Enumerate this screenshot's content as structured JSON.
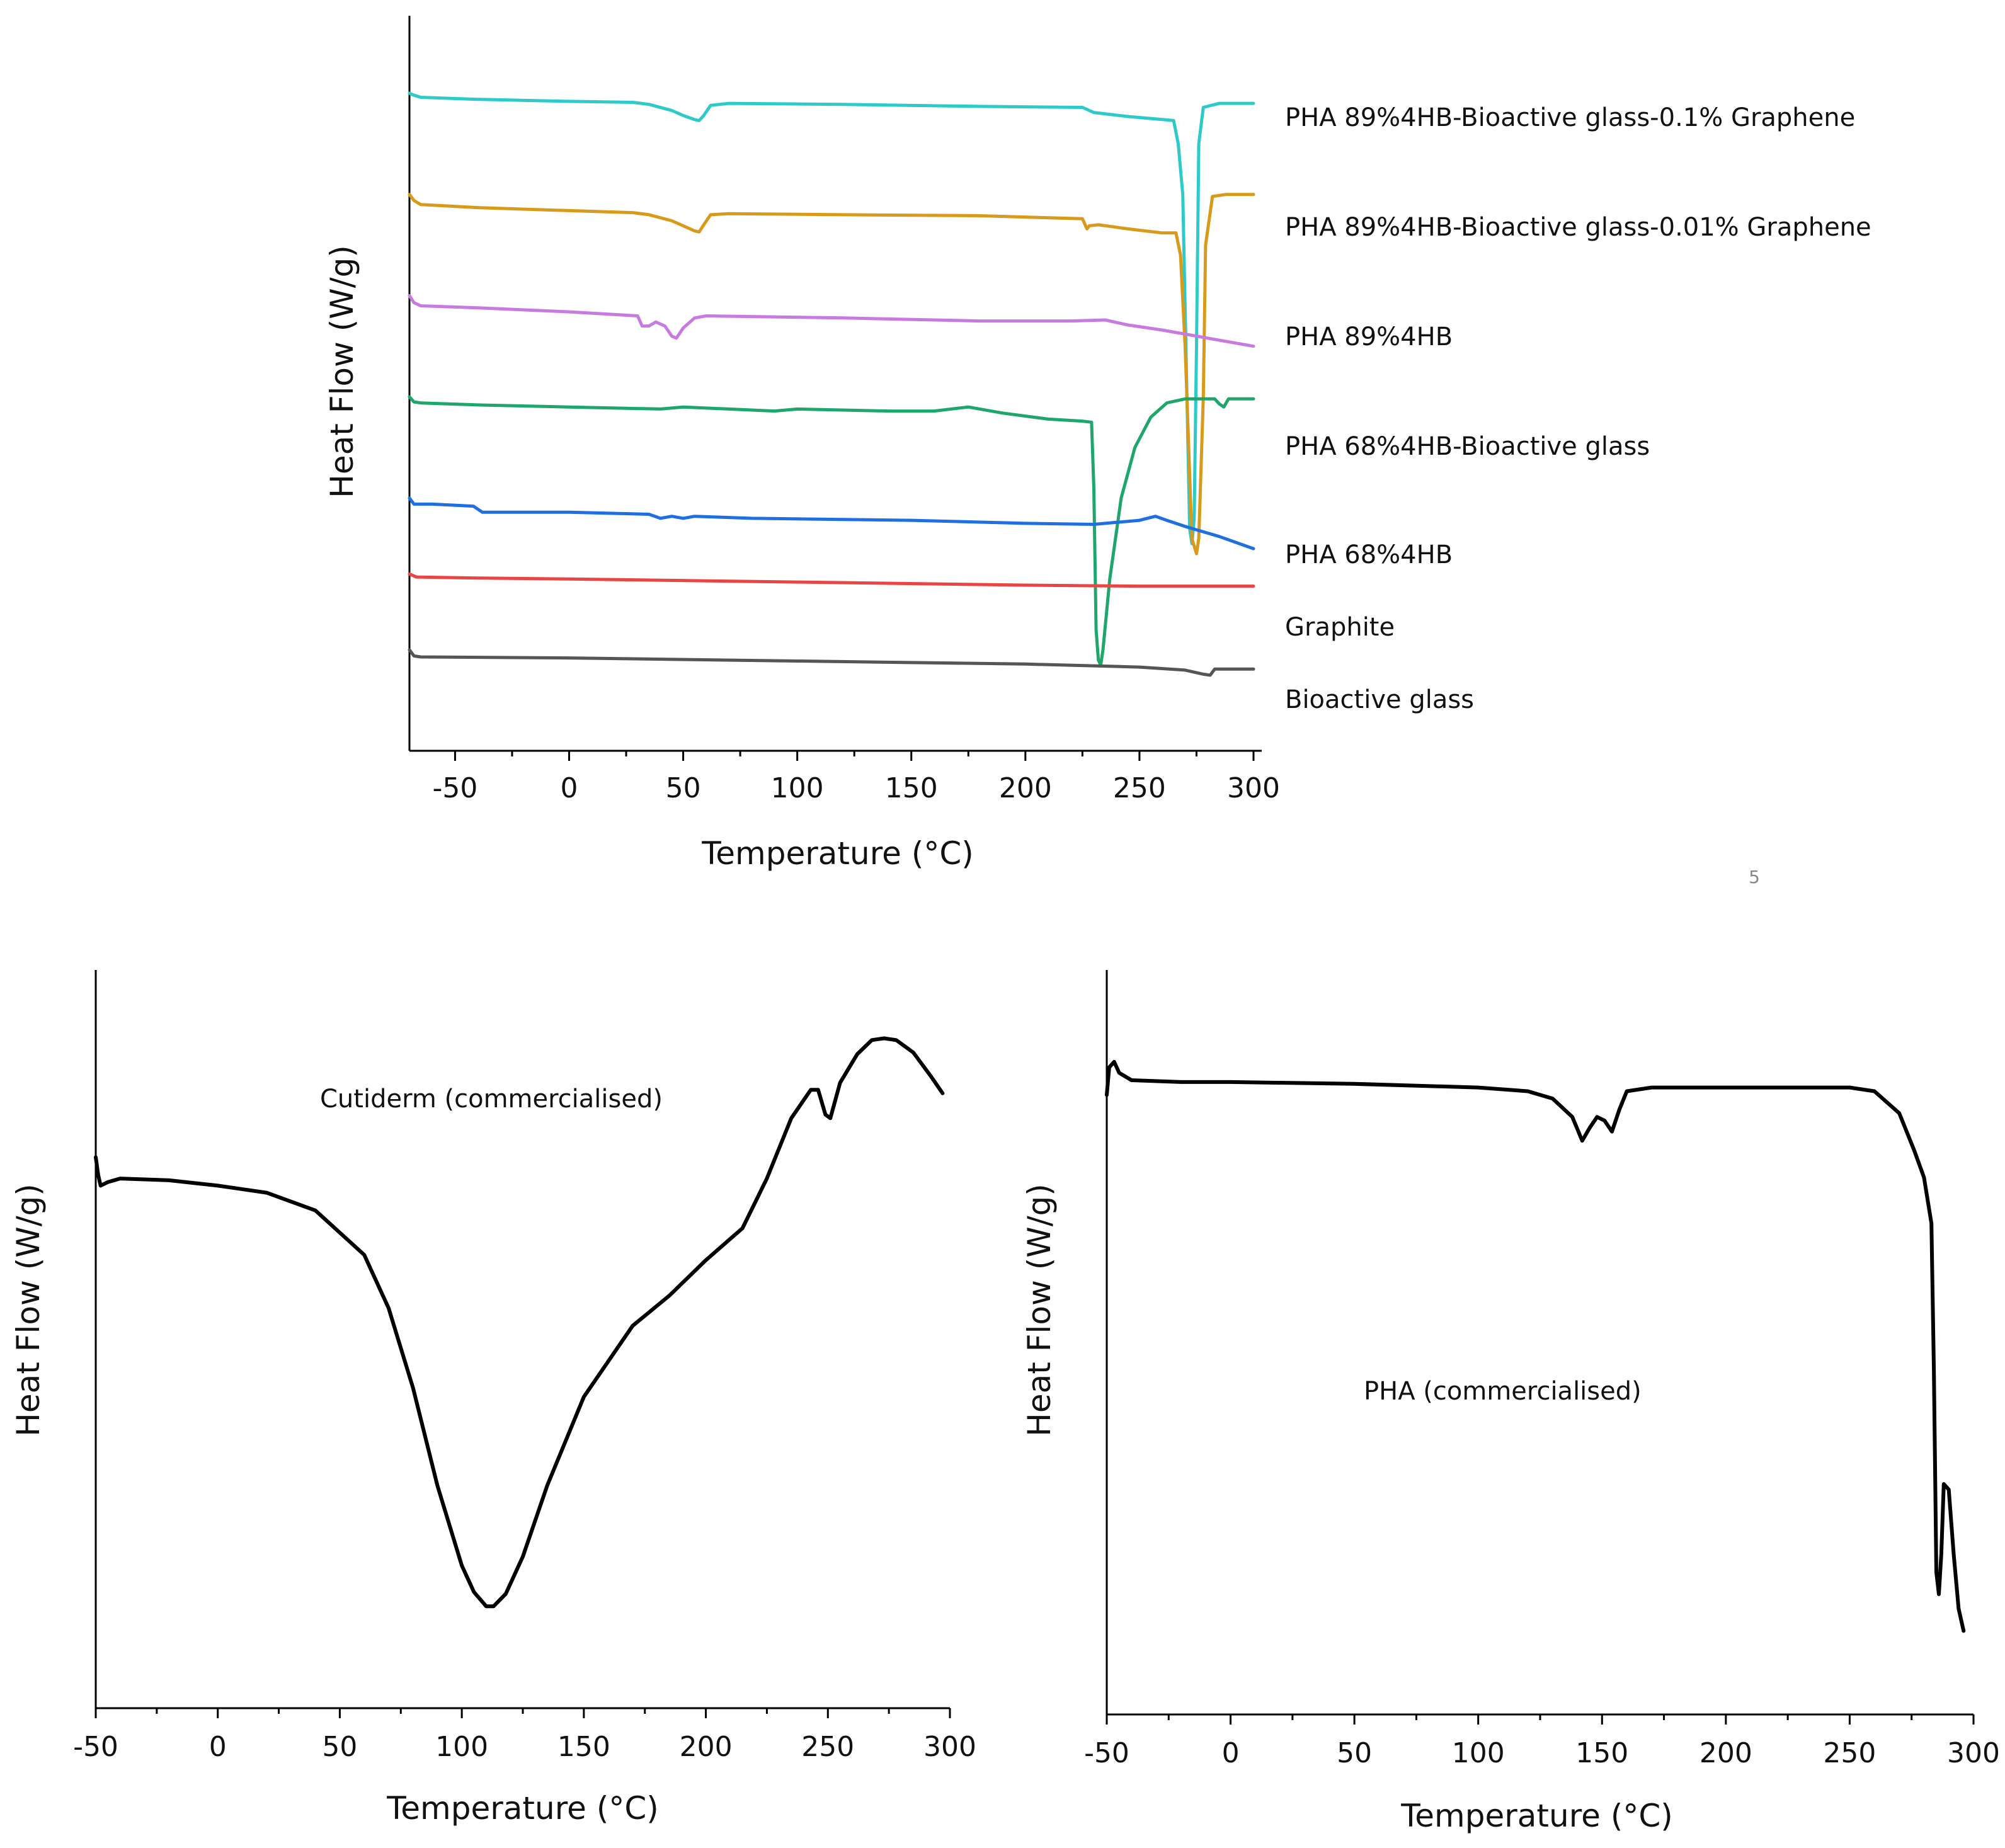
{
  "page_number": "5",
  "chart_data": [
    {
      "id": "top",
      "type": "line",
      "title": "",
      "xlabel": "Temperature (°C)",
      "ylabel": "Heat Flow (W/g)",
      "xlim": [
        -70,
        300
      ],
      "x_ticks": [
        -50,
        0,
        50,
        100,
        150,
        200,
        250,
        300
      ],
      "y_ticks_shown": false,
      "grid": false,
      "legend": "right, each label beside its curve",
      "series": [
        {
          "name": "PHA 89%4HB-Bioactive glass-0.1% Graphene",
          "color": "#2ec9c9",
          "points": [
            [
              -70,
              1.0
            ],
            [
              -68,
              0.98
            ],
            [
              -65,
              0.96
            ],
            [
              -40,
              0.94
            ],
            [
              0,
              0.92
            ],
            [
              28,
              0.91
            ],
            [
              35,
              0.89
            ],
            [
              45,
              0.83
            ],
            [
              50,
              0.78
            ],
            [
              55,
              0.74
            ],
            [
              57,
              0.73
            ],
            [
              59,
              0.78
            ],
            [
              62,
              0.88
            ],
            [
              70,
              0.9
            ],
            [
              120,
              0.89
            ],
            [
              180,
              0.87
            ],
            [
              225,
              0.86
            ],
            [
              230,
              0.81
            ],
            [
              245,
              0.77
            ],
            [
              260,
              0.74
            ],
            [
              265,
              0.73
            ],
            [
              267,
              0.5
            ],
            [
              269,
              0.0
            ],
            [
              272,
              -3.3
            ],
            [
              273,
              -3.45
            ],
            [
              274,
              -3.2
            ],
            [
              275,
              -1.5
            ],
            [
              276,
              0.5
            ],
            [
              278,
              0.86
            ],
            [
              285,
              0.9
            ],
            [
              300,
              0.9
            ]
          ]
        },
        {
          "name": "PHA 89%4HB-Bioactive glass-0.01% Graphene",
          "color": "#d89a1a",
          "points": [
            [
              -70,
              0.0
            ],
            [
              -68,
              -0.06
            ],
            [
              -65,
              -0.1
            ],
            [
              -40,
              -0.13
            ],
            [
              0,
              -0.16
            ],
            [
              28,
              -0.18
            ],
            [
              35,
              -0.2
            ],
            [
              45,
              -0.26
            ],
            [
              50,
              -0.31
            ],
            [
              55,
              -0.36
            ],
            [
              57,
              -0.37
            ],
            [
              59,
              -0.3
            ],
            [
              62,
              -0.2
            ],
            [
              70,
              -0.19
            ],
            [
              120,
              -0.2
            ],
            [
              180,
              -0.21
            ],
            [
              225,
              -0.24
            ],
            [
              227,
              -0.34
            ],
            [
              228,
              -0.31
            ],
            [
              232,
              -0.3
            ],
            [
              245,
              -0.34
            ],
            [
              260,
              -0.38
            ],
            [
              266,
              -0.38
            ],
            [
              268,
              -0.6
            ],
            [
              270,
              -1.5
            ],
            [
              273,
              -3.4
            ],
            [
              275,
              -3.55
            ],
            [
              276,
              -3.4
            ],
            [
              278,
              -2.0
            ],
            [
              279,
              -0.5
            ],
            [
              282,
              -0.02
            ],
            [
              288,
              0.0
            ],
            [
              300,
              0.0
            ]
          ]
        },
        {
          "name": "PHA 89%4HB",
          "color": "#c77ae0",
          "points": [
            [
              -70,
              -1.0
            ],
            [
              -68,
              -1.07
            ],
            [
              -65,
              -1.1
            ],
            [
              -40,
              -1.12
            ],
            [
              0,
              -1.16
            ],
            [
              30,
              -1.2
            ],
            [
              32,
              -1.3
            ],
            [
              35,
              -1.3
            ],
            [
              38,
              -1.26
            ],
            [
              42,
              -1.3
            ],
            [
              45,
              -1.4
            ],
            [
              47,
              -1.42
            ],
            [
              50,
              -1.32
            ],
            [
              55,
              -1.22
            ],
            [
              60,
              -1.2
            ],
            [
              120,
              -1.22
            ],
            [
              180,
              -1.25
            ],
            [
              220,
              -1.25
            ],
            [
              235,
              -1.24
            ],
            [
              245,
              -1.29
            ],
            [
              260,
              -1.34
            ],
            [
              280,
              -1.42
            ],
            [
              300,
              -1.5
            ]
          ]
        },
        {
          "name": "PHA 68%4HB-Bioactive glass",
          "color": "#1fa66b",
          "points": [
            [
              -70,
              -2.0
            ],
            [
              -68,
              -2.05
            ],
            [
              -65,
              -2.06
            ],
            [
              -40,
              -2.08
            ],
            [
              0,
              -2.1
            ],
            [
              40,
              -2.12
            ],
            [
              50,
              -2.1
            ],
            [
              90,
              -2.14
            ],
            [
              100,
              -2.12
            ],
            [
              140,
              -2.14
            ],
            [
              160,
              -2.14
            ],
            [
              175,
              -2.1
            ],
            [
              190,
              -2.16
            ],
            [
              210,
              -2.22
            ],
            [
              225,
              -2.24
            ],
            [
              229,
              -2.25
            ],
            [
              230,
              -2.9
            ],
            [
              231,
              -4.3
            ],
            [
              232,
              -4.6
            ],
            [
              233,
              -4.65
            ],
            [
              234,
              -4.5
            ],
            [
              237,
              -3.8
            ],
            [
              242,
              -3.0
            ],
            [
              248,
              -2.5
            ],
            [
              255,
              -2.2
            ],
            [
              262,
              -2.06
            ],
            [
              270,
              -2.02
            ],
            [
              283,
              -2.02
            ],
            [
              285,
              -2.07
            ],
            [
              287,
              -2.1
            ],
            [
              289,
              -2.02
            ],
            [
              300,
              -2.02
            ]
          ]
        },
        {
          "name": "PHA 68%4HB",
          "color": "#1f6fe0",
          "points": [
            [
              -70,
              -3.0
            ],
            [
              -68,
              -3.06
            ],
            [
              -60,
              -3.06
            ],
            [
              -42,
              -3.08
            ],
            [
              -38,
              -3.14
            ],
            [
              -30,
              -3.14
            ],
            [
              0,
              -3.14
            ],
            [
              35,
              -3.16
            ],
            [
              40,
              -3.2
            ],
            [
              45,
              -3.18
            ],
            [
              50,
              -3.2
            ],
            [
              55,
              -3.18
            ],
            [
              80,
              -3.2
            ],
            [
              150,
              -3.22
            ],
            [
              200,
              -3.25
            ],
            [
              230,
              -3.26
            ],
            [
              240,
              -3.24
            ],
            [
              250,
              -3.22
            ],
            [
              257,
              -3.18
            ],
            [
              262,
              -3.22
            ],
            [
              270,
              -3.28
            ],
            [
              285,
              -3.38
            ],
            [
              300,
              -3.5
            ]
          ]
        },
        {
          "name": "Graphite",
          "color": "#e84545",
          "points": [
            [
              -70,
              -3.75
            ],
            [
              -67,
              -3.78
            ],
            [
              -40,
              -3.79
            ],
            [
              0,
              -3.8
            ],
            [
              100,
              -3.83
            ],
            [
              200,
              -3.86
            ],
            [
              250,
              -3.87
            ],
            [
              300,
              -3.87
            ]
          ]
        },
        {
          "name": "Bioactive glass",
          "color": "#555555",
          "points": [
            [
              -70,
              -4.5
            ],
            [
              -68,
              -4.56
            ],
            [
              -65,
              -4.57
            ],
            [
              0,
              -4.58
            ],
            [
              100,
              -4.61
            ],
            [
              200,
              -4.64
            ],
            [
              250,
              -4.67
            ],
            [
              270,
              -4.7
            ],
            [
              278,
              -4.74
            ],
            [
              281,
              -4.75
            ],
            [
              283,
              -4.69
            ],
            [
              290,
              -4.69
            ],
            [
              300,
              -4.69
            ]
          ]
        }
      ]
    },
    {
      "id": "bottom-left",
      "type": "line",
      "title": "",
      "xlabel": "Temperature (°C)",
      "ylabel": "Heat Flow (W/g)",
      "xlim": [
        -50,
        300
      ],
      "x_ticks": [
        -50,
        0,
        50,
        100,
        150,
        200,
        250,
        300
      ],
      "y_ticks_shown": false,
      "grid": false,
      "annotations": [
        {
          "text": "Cutiderm (commercialised)",
          "x": 45,
          "y": 0.6
        }
      ],
      "series": [
        {
          "name": "Cutiderm (commercialised)",
          "color": "#000000",
          "points": [
            [
              -50,
              0.0
            ],
            [
              -49,
              -0.1
            ],
            [
              -48,
              -0.16
            ],
            [
              -45,
              -0.14
            ],
            [
              -40,
              -0.12
            ],
            [
              -20,
              -0.13
            ],
            [
              0,
              -0.16
            ],
            [
              20,
              -0.2
            ],
            [
              40,
              -0.3
            ],
            [
              60,
              -0.55
            ],
            [
              70,
              -0.85
            ],
            [
              80,
              -1.3
            ],
            [
              90,
              -1.85
            ],
            [
              100,
              -2.3
            ],
            [
              105,
              -2.45
            ],
            [
              110,
              -2.53
            ],
            [
              113,
              -2.53
            ],
            [
              118,
              -2.46
            ],
            [
              125,
              -2.25
            ],
            [
              135,
              -1.85
            ],
            [
              150,
              -1.35
            ],
            [
              170,
              -0.95
            ],
            [
              185,
              -0.78
            ],
            [
              200,
              -0.58
            ],
            [
              215,
              -0.4
            ],
            [
              225,
              -0.12
            ],
            [
              235,
              0.22
            ],
            [
              243,
              0.38
            ],
            [
              246,
              0.38
            ],
            [
              249,
              0.24
            ],
            [
              251,
              0.22
            ],
            [
              255,
              0.42
            ],
            [
              262,
              0.58
            ],
            [
              268,
              0.66
            ],
            [
              273,
              0.67
            ],
            [
              278,
              0.66
            ],
            [
              285,
              0.59
            ],
            [
              292,
              0.46
            ],
            [
              297,
              0.36
            ]
          ]
        }
      ]
    },
    {
      "id": "bottom-right",
      "type": "line",
      "title": "",
      "xlabel": "Temperature (°C)",
      "ylabel": "Heat Flow (W/g)",
      "xlim": [
        -50,
        300
      ],
      "x_ticks": [
        -50,
        0,
        50,
        100,
        150,
        200,
        250,
        300
      ],
      "y_ticks_shown": false,
      "grid": false,
      "annotations": [
        {
          "text": "PHA (commercialised)",
          "x": 115,
          "y": -1.1
        }
      ],
      "series": [
        {
          "name": "PHA (commercialised)",
          "color": "#000000",
          "points": [
            [
              -50,
              0.0
            ],
            [
              -49,
              0.15
            ],
            [
              -47,
              0.18
            ],
            [
              -45,
              0.12
            ],
            [
              -40,
              0.08
            ],
            [
              -20,
              0.07
            ],
            [
              0,
              0.07
            ],
            [
              50,
              0.06
            ],
            [
              100,
              0.04
            ],
            [
              120,
              0.02
            ],
            [
              130,
              -0.02
            ],
            [
              138,
              -0.12
            ],
            [
              142,
              -0.25
            ],
            [
              145,
              -0.18
            ],
            [
              148,
              -0.12
            ],
            [
              151,
              -0.14
            ],
            [
              154,
              -0.2
            ],
            [
              157,
              -0.08
            ],
            [
              160,
              0.02
            ],
            [
              170,
              0.04
            ],
            [
              250,
              0.04
            ],
            [
              260,
              0.02
            ],
            [
              270,
              -0.1
            ],
            [
              276,
              -0.3
            ],
            [
              280,
              -0.45
            ],
            [
              283,
              -0.7
            ],
            [
              284,
              -1.5
            ],
            [
              285,
              -2.6
            ],
            [
              286,
              -2.72
            ],
            [
              287,
              -2.5
            ],
            [
              288,
              -2.12
            ],
            [
              290,
              -2.15
            ],
            [
              292,
              -2.5
            ],
            [
              294,
              -2.8
            ],
            [
              296,
              -2.92
            ]
          ]
        }
      ]
    }
  ]
}
